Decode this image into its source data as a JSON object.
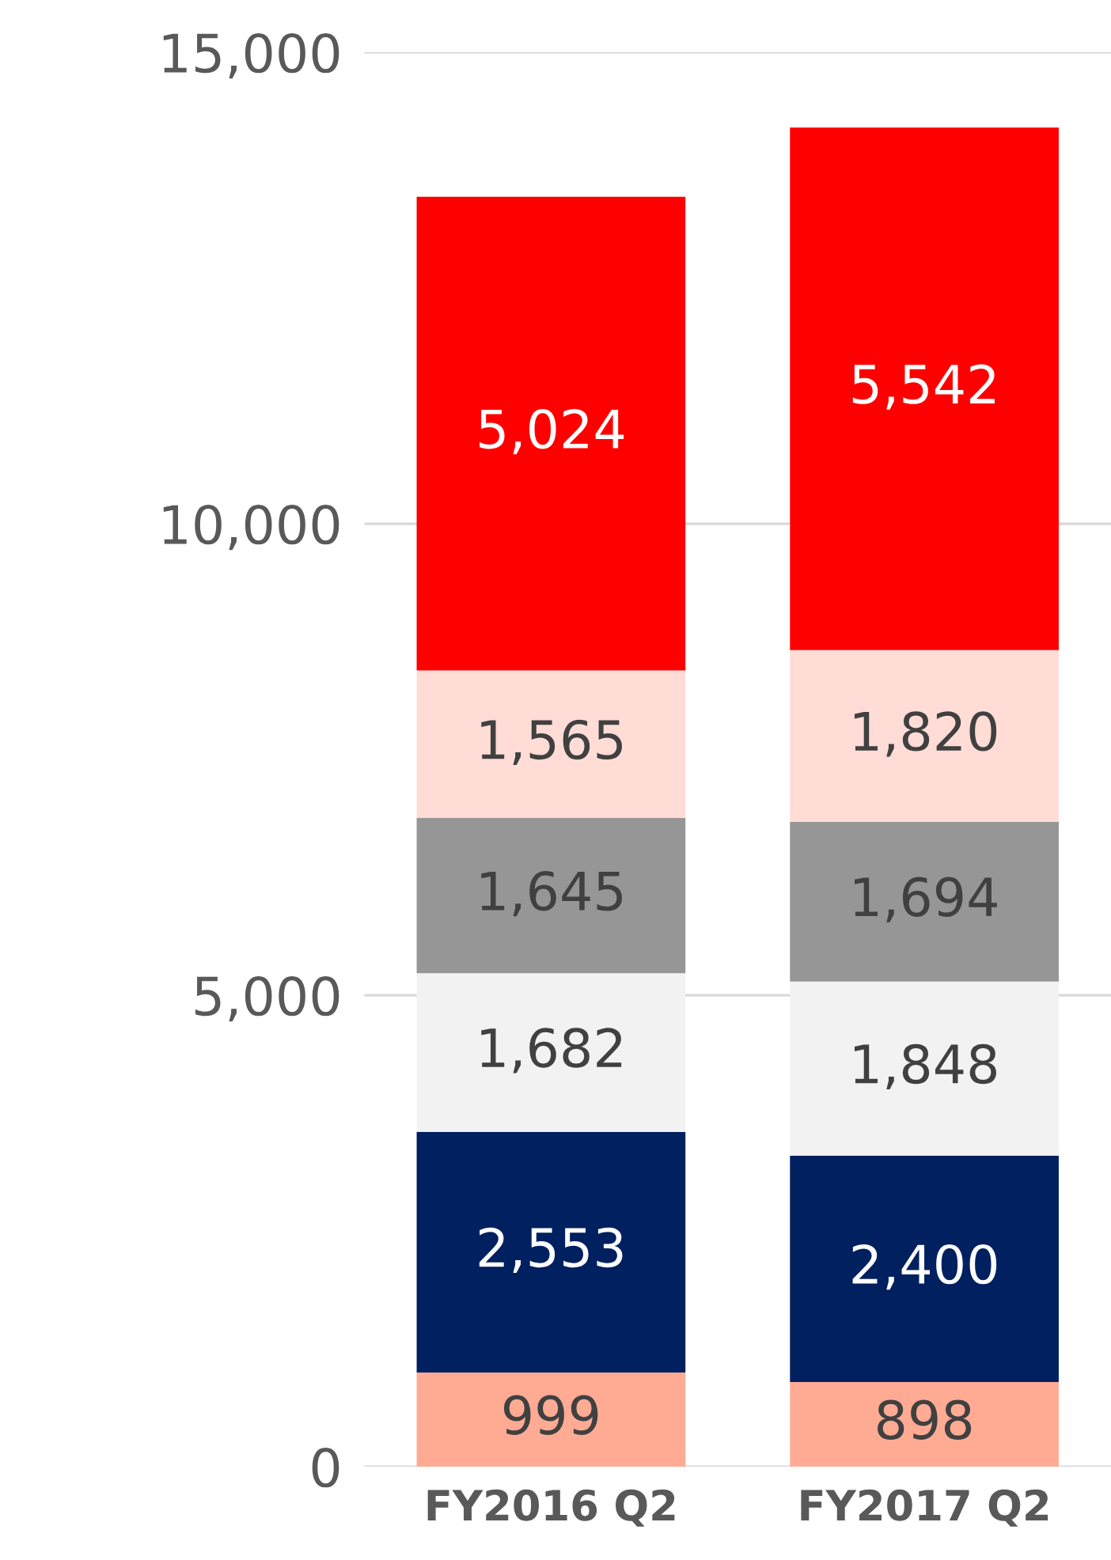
{
  "chart_data": {
    "type": "bar",
    "stacked": true,
    "categories": [
      "FY2016 Q2",
      "FY2017 Q2"
    ],
    "series": [
      {
        "color": "#ffab94",
        "values": [
          999,
          898
        ],
        "value_labels": [
          "999",
          "898"
        ]
      },
      {
        "color": "#002060",
        "values": [
          2553,
          2400
        ],
        "value_labels": [
          "2,553",
          "2,400"
        ]
      },
      {
        "color": "#f2f2f2",
        "values": [
          1682,
          1848
        ],
        "value_labels": [
          "1,682",
          "1,848"
        ]
      },
      {
        "color": "#969696",
        "values": [
          1645,
          1694
        ],
        "value_labels": [
          "1,645",
          "1,694"
        ]
      },
      {
        "color": "#ffdcd6",
        "values": [
          1565,
          1820
        ],
        "value_labels": [
          "1,565",
          "1,820"
        ]
      },
      {
        "color": "#ff0000",
        "values": [
          5024,
          5542
        ],
        "value_labels": [
          "5,024",
          "5,542"
        ]
      }
    ],
    "ylim": [
      0,
      15000
    ],
    "yticks": [
      {
        "value": 0,
        "label": "0"
      },
      {
        "value": 5000,
        "label": "5,000"
      },
      {
        "value": 10000,
        "label": "10,000"
      },
      {
        "value": 15000,
        "label": "15,000"
      }
    ],
    "grid": "y"
  }
}
